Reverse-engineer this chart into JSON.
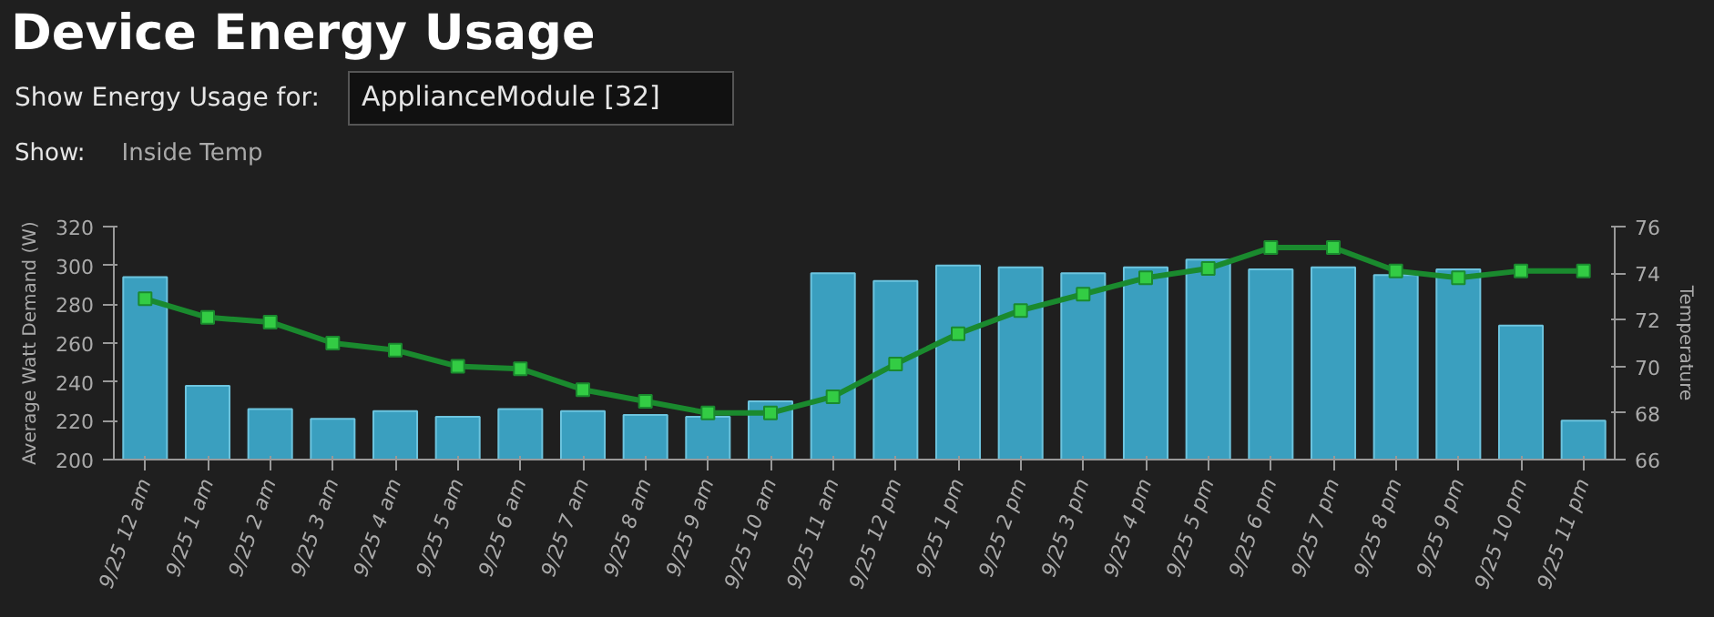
{
  "chart_data": {
    "type": "bar",
    "title": "Device Energy Usage",
    "annotations": [
      "Show Energy Usage for:",
      "ApplianceModule [32]",
      "Show:",
      "Inside Temp"
    ],
    "categories": [
      "9/25 12 am",
      "9/25 1 am",
      "9/25 2 am",
      "9/25 3 am",
      "9/25 4 am",
      "9/25 5 am",
      "9/25 6 am",
      "9/25 7 am",
      "9/25 8 am",
      "9/25 9 am",
      "9/25 10 am",
      "9/25 11 am",
      "9/25 12 pm",
      "9/25 1 pm",
      "9/25 2 pm",
      "9/25 3 pm",
      "9/25 4 pm",
      "9/25 5 pm",
      "9/25 6 pm",
      "9/25 7 pm",
      "9/25 8 pm",
      "9/25 9 pm",
      "9/25 10 pm",
      "9/25 11 pm"
    ],
    "ylabel": "Average Watt Demand (W)",
    "y2label": "Temperature",
    "ylim": [
      200,
      320
    ],
    "yticks": [
      200,
      220,
      240,
      260,
      280,
      300,
      320
    ],
    "y2lim": [
      66,
      76
    ],
    "y2ticks": [
      66,
      68,
      70,
      72,
      74,
      76
    ],
    "marker": "square",
    "series": [
      {
        "color": "#3a9fbf",
        "values": [
          294,
          238,
          226,
          221,
          225,
          222,
          226,
          225,
          223,
          222,
          230,
          296,
          292,
          300,
          299,
          296,
          299,
          303,
          298,
          299,
          295,
          298,
          269,
          220
        ]
      },
      {
        "type": "line",
        "axis": "y2",
        "color": "#1a8a2e",
        "values": [
          72.9,
          72.1,
          71.9,
          71.0,
          70.7,
          70.0,
          69.9,
          69.0,
          68.5,
          68.0,
          68.0,
          68.7,
          70.1,
          71.4,
          72.4,
          73.1,
          73.8,
          74.2,
          75.1,
          75.1,
          74.1,
          73.8,
          74.1,
          74.1
        ]
      }
    ]
  }
}
